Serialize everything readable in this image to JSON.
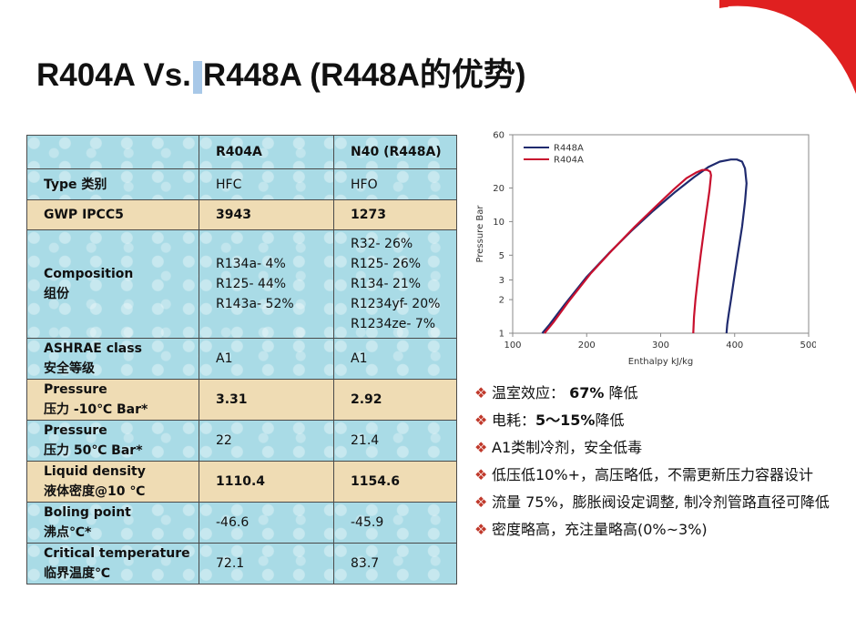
{
  "title": {
    "part1": "R404A Vs.",
    "part2": "R448A (R448A的优势)"
  },
  "table": {
    "header": [
      "",
      "R404A",
      "N40 (R448A)"
    ],
    "rows": [
      {
        "label": [
          "Type 类别"
        ],
        "v1": [
          "HFC"
        ],
        "v2": [
          "HFO"
        ],
        "style": "blue",
        "bold_values": false
      },
      {
        "label": [
          "GWP IPCC5"
        ],
        "v1": [
          "3943"
        ],
        "v2": [
          "1273"
        ],
        "style": "tan",
        "bold_values": true
      },
      {
        "label": [
          "Composition",
          "组份"
        ],
        "v1": [
          "R134a- 4%",
          "R125- 44%",
          "R143a- 52%"
        ],
        "v2": [
          "R32- 26%",
          "R125- 26%",
          "R134- 21%",
          "R1234yf- 20%",
          "R1234ze- 7%"
        ],
        "style": "blue",
        "bold_values": false
      },
      {
        "label": [
          "ASHRAE class",
          " 安全等级"
        ],
        "v1": [
          "A1"
        ],
        "v2": [
          "A1"
        ],
        "style": "blue",
        "bold_values": false
      },
      {
        "label": [
          "Pressure",
          "压力 -10℃ Bar*"
        ],
        "v1": [
          "3.31"
        ],
        "v2": [
          "2.92"
        ],
        "style": "tan",
        "bold_values": true
      },
      {
        "label": [
          "Pressure",
          "压力 50℃ Bar*"
        ],
        "v1": [
          "22"
        ],
        "v2": [
          "21.4"
        ],
        "style": "blue",
        "bold_values": false
      },
      {
        "label": [
          "Liquid density",
          "液体密度@10 ℃"
        ],
        "v1": [
          "1110.4"
        ],
        "v2": [
          "1154.6"
        ],
        "style": "tan",
        "bold_values": true
      },
      {
        "label": [
          "Boling point",
          "沸点℃*"
        ],
        "v1": [
          "-46.6"
        ],
        "v2": [
          "-45.9"
        ],
        "style": "blue",
        "bold_values": false
      },
      {
        "label": [
          "Critical temperature",
          "临界温度℃"
        ],
        "v1": [
          "72.1"
        ],
        "v2": [
          "83.7"
        ],
        "style": "blue",
        "bold_values": false
      }
    ]
  },
  "chart_data": {
    "type": "line",
    "xlabel": "Enthalpy kJ/kg",
    "ylabel": "Pressure Bar",
    "xlim": [
      100,
      500
    ],
    "ylim": [
      1,
      60
    ],
    "yscale": "log",
    "x_ticks": [
      100,
      200,
      300,
      400,
      500
    ],
    "y_ticks": [
      1,
      2,
      3,
      5,
      10,
      20,
      60
    ],
    "grid": false,
    "legend": "top-left",
    "series": [
      {
        "name": "R448A",
        "color": "#1f2a6e",
        "x": [
          140,
          150,
          170,
          200,
          230,
          260,
          290,
          320,
          345,
          365,
          380,
          395,
          403,
          410,
          414,
          416,
          414,
          410,
          404,
          399,
          395,
          392,
          390,
          389
        ],
        "y": [
          1,
          1.2,
          1.8,
          3.2,
          5.2,
          8.2,
          12.5,
          18.5,
          25,
          31,
          34.5,
          36,
          36,
          34.5,
          30,
          22,
          15,
          9,
          5,
          3,
          2,
          1.5,
          1.2,
          1
        ]
      },
      {
        "name": "R404A",
        "color": "#c8102e",
        "x": [
          143,
          155,
          175,
          205,
          235,
          265,
          295,
          318,
          335,
          348,
          356,
          363,
          367,
          368,
          366,
          360,
          354,
          350,
          347,
          345,
          344
        ],
        "y": [
          1,
          1.25,
          1.9,
          3.4,
          5.6,
          9,
          14,
          19.5,
          24.5,
          27.5,
          29,
          29,
          28,
          26,
          19,
          10,
          5,
          3,
          2,
          1.4,
          1
        ]
      }
    ]
  },
  "bullets": [
    {
      "pre": "温室效应： ",
      "bold": "67%",
      "post": " 降低"
    },
    {
      "pre": "电耗：",
      "bold": "5～15%",
      "post": "降低"
    },
    {
      "pre": "A1类制冷剂，安全低毒",
      "bold": "",
      "post": ""
    },
    {
      "pre": "低压低10%+，高压略低，不需更新压力容器设计",
      "bold": "",
      "post": ""
    },
    {
      "pre": "流量 75%，膨胀阀设定调整, 制冷剂管路直径可降低",
      "bold": "",
      "post": ""
    },
    {
      "pre": "密度略高，充注量略高(0%~3%)",
      "bold": "",
      "post": ""
    }
  ],
  "colors": {
    "accent_red": "#d81e1e",
    "table_blue": "#a9dbe6",
    "table_tan": "#efdcb4",
    "bullet_red": "#c0392b"
  }
}
